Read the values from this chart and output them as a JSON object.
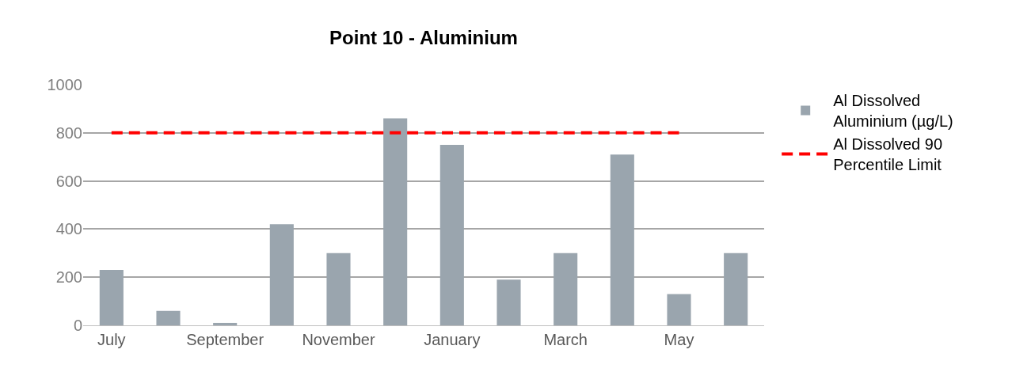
{
  "chart_data": {
    "type": "bar",
    "title": "Point 10 - Aluminium",
    "categories": [
      "July",
      null,
      "September",
      null,
      "November",
      null,
      "January",
      null,
      "March",
      null,
      "May",
      null
    ],
    "series": [
      {
        "name": "Al Dissolved Aluminium (µg/L)",
        "color": "#9aa5ae",
        "values": [
          230,
          60,
          10,
          420,
          300,
          860,
          750,
          190,
          300,
          710,
          130,
          300
        ]
      },
      {
        "name": "Al Dissolved 90 Percentile Limit",
        "type": "line",
        "color": "#ff0000",
        "line_style": "dashed",
        "values": [
          800,
          800,
          800,
          800,
          800,
          800,
          800,
          800,
          800,
          800,
          800,
          null
        ]
      }
    ],
    "ylim": [
      0,
      1000
    ],
    "yticks": [
      0,
      200,
      400,
      600,
      800,
      1000
    ],
    "grid": "y",
    "legend": "right"
  }
}
